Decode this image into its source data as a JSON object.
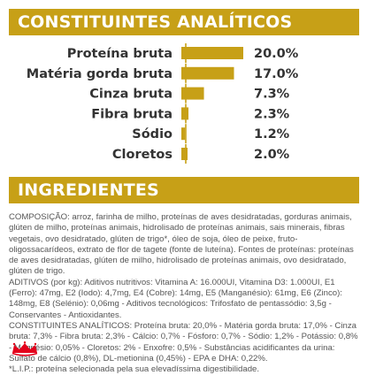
{
  "header": {
    "analytic_title": "CONSTITUINTES ANALÍTICOS",
    "ingredients_title": "INGREDIENTES"
  },
  "nutrients": [
    {
      "label": "Proteína bruta",
      "value": "20.0%",
      "amount": 20.0
    },
    {
      "label": "Matéria gorda bruta",
      "value": "17.0%",
      "amount": 17.0
    },
    {
      "label": "Cinza bruta",
      "value": "7.3%",
      "amount": 7.3
    },
    {
      "label": "Fibra bruta",
      "value": "2.3%",
      "amount": 2.3
    },
    {
      "label": "Sódio",
      "value": "1.2%",
      "amount": 1.2
    },
    {
      "label": "Cloretos",
      "value": "2.0%",
      "amount": 2.0
    }
  ],
  "ingredients_text": {
    "composition": "COMPOSIÇÃO: arroz, farinha de milho, proteínas de aves desidratadas, gorduras animais, glúten de milho, proteínas animais, hidrolisado de proteínas animais, sais minerais, fibras vegetais, ovo desidratado, glúten de trigo*, óleo de soja, óleo de peixe, fruto-oligossacarídeos, extrato de flor de tagete (fonte de luteína). Fontes de proteínas: proteínas de aves desidratadas, glúten de milho, hidrolisado de proteínas animais, ovo desidratado, glúten de trigo.",
    "additives": "ADITIVOS (por kg): Aditivos nutritivos: Vitamina A: 16.000UI, Vitamina D3: 1.000UI, E1 (Ferro): 47mg, E2 (Iodo): 4,7mg, E4 (Cobre): 14mg, E5 (Manganésio): 61mg, E6 (Zinco): 148mg, E8 (Selénio): 0,06mg - Aditivos tecnológicos: Trifosfato de pentassódio: 3,5g - Conservantes - Antioxidantes.",
    "constituents": "CONSTITUINTES ANALÍTICOS: Proteína bruta: 20,0% - Matéria gorda bruta: 17,0% - Cinza bruta: 7,3% - Fibra bruta: 2,3% - Cálcio: 0,7% - Fósforo: 0,7% - Sódio: 1,2% - Potássio: 0,8% - Magnésio: 0,05% - Cloretos: 2% - Enxofre: 0,5% - Substâncias acidificantes da urina: Sulfato de cálcio (0,8%), DL-metionina (0,45%) - EPA e DHA: 0,22%.",
    "lip": "*L.I.P.: proteína selecionada pela sua elevadíssima digestibilidade."
  },
  "brand": {
    "logo": "royal-canin-crown-logo",
    "accent_color": "#c7a017",
    "logo_color": "#e3001b"
  }
}
